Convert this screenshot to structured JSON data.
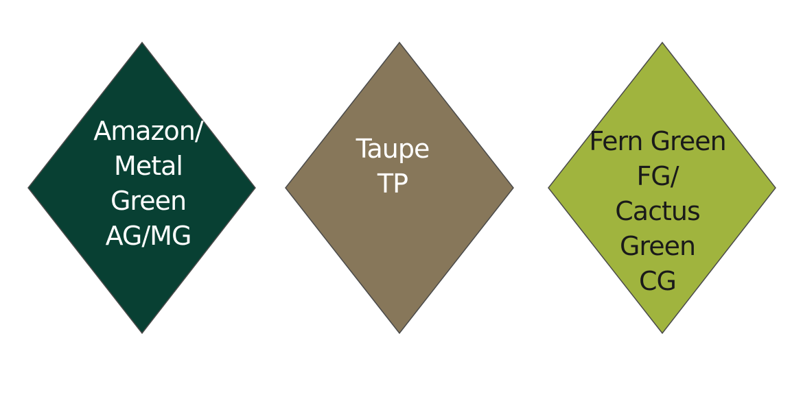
{
  "swatches": [
    {
      "name_lines": [
        "Amazon/",
        "Metal",
        "Green",
        "AG/MG"
      ],
      "fill": "#084033",
      "text_color": "#ffffff"
    },
    {
      "name_lines": [
        "Taupe",
        "TP"
      ],
      "fill": "#87775A",
      "text_color": "#ffffff"
    },
    {
      "name_lines": [
        "Fern Green",
        "FG/",
        "Cactus",
        "Green",
        "CG"
      ],
      "fill": "#A0B43E",
      "text_color": "#1a1a1a"
    }
  ],
  "outline_color": "#4a4a4a"
}
